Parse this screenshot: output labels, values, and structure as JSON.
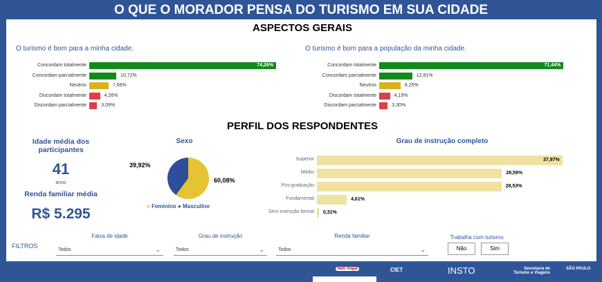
{
  "header": {
    "title": "O QUE O MORADOR PENSA DO TURISMO EM SUA CIDADE"
  },
  "aspectos": {
    "title": "ASPECTOS GERAIS",
    "charts": [
      {
        "title": "O turismo é bom para a minha cidade.",
        "categories": [
          "Concordam totalmente",
          "Concordam parcialmente",
          "Neutros",
          "Discordam totalmente",
          "Discordam parcialmente"
        ],
        "values": [
          74.26,
          10.72,
          7.66,
          4.26,
          3.09
        ],
        "labels": [
          "74,26%",
          "10,72%",
          "7,66%",
          "4,26%",
          "3,09%"
        ]
      },
      {
        "title": "O turismo é bom para a população da minha cidade.",
        "categories": [
          "Concordam totalmente",
          "Concordam parcialmente",
          "Neutros",
          "Discordam totalmente",
          "Discordam parcialmente"
        ],
        "values": [
          71.44,
          12.81,
          8.25,
          4.19,
          3.3
        ],
        "labels": [
          "71,44%",
          "12,81%",
          "8,25%",
          "4,19%",
          "3,30%"
        ]
      }
    ],
    "colors": [
      "#138a1c",
      "#138a1c",
      "#d9b21c",
      "#dc3f4c",
      "#dc3f4c"
    ]
  },
  "perfil": {
    "title": "PERFIL DOS RESPONDENTES",
    "idade_label": "Idade média dos participantes",
    "idade_value": "41",
    "idade_unit": "anos",
    "renda_label": "Renda familiar média",
    "renda_value": "R$ 5.295"
  },
  "chart_data": [
    {
      "type": "bar",
      "title": "O turismo é bom para a minha cidade.",
      "categories": [
        "Concordam totalmente",
        "Concordam parcialmente",
        "Neutros",
        "Discordam totalmente",
        "Discordam parcialmente"
      ],
      "values": [
        74.26,
        10.72,
        7.66,
        4.26,
        3.09
      ]
    },
    {
      "type": "bar",
      "title": "O turismo é bom para a população da minha cidade.",
      "categories": [
        "Concordam totalmente",
        "Concordam parcialmente",
        "Neutros",
        "Discordam totalmente",
        "Discordam parcialmente"
      ],
      "values": [
        71.44,
        12.81,
        8.25,
        4.19,
        3.3
      ]
    },
    {
      "type": "pie",
      "title": "Sexo",
      "categories": [
        "Feminino",
        "Masculino"
      ],
      "values": [
        60.08,
        39.92
      ],
      "labels": [
        "60,08%",
        "39,92%"
      ],
      "colors": [
        "#e6c235",
        "#2f4e99"
      ],
      "legend": "bottom"
    },
    {
      "type": "bar",
      "title": "Grau de instrução completo",
      "categories": [
        "Superior",
        "Médio",
        "Pós-graduação",
        "Fundamental",
        "Sem instrução formal"
      ],
      "values": [
        37.97,
        28.59,
        28.53,
        4.61,
        0.31
      ],
      "labels": [
        "37,97%",
        "28,59%",
        "28,53%",
        "4,61%",
        "0,31%"
      ],
      "color": "#f0e2a0"
    }
  ],
  "filtros": {
    "label": "FILTROS",
    "faixa": {
      "label": "Faixa de idade",
      "value": "Todos"
    },
    "grau": {
      "label": "Grau de instrução",
      "value": "Todos"
    },
    "renda": {
      "label": "Renda familiar",
      "value": "Todos"
    },
    "trabalha": {
      "label": "Trabalha com turismo",
      "no": "Não",
      "yes": "Sim"
    }
  },
  "footer": {
    "logos": [
      "Vem Viajar",
      "CIET",
      "INSTO",
      "Secretaria de Turismo e Viagens",
      "SÃO PAULO"
    ]
  }
}
